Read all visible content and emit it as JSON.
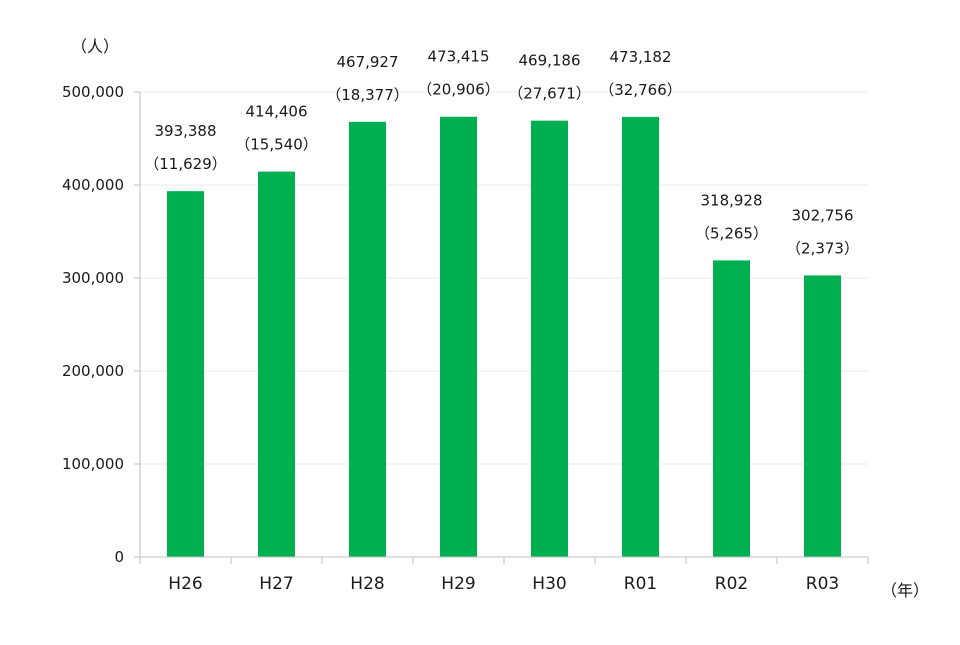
{
  "chart_data": {
    "type": "bar",
    "y_unit_label": "（人）",
    "x_unit_label": "（年）",
    "categories": [
      "H26",
      "H27",
      "H28",
      "H29",
      "H30",
      "R01",
      "R02",
      "R03"
    ],
    "values": [
      393388,
      414406,
      467927,
      473415,
      469186,
      473182,
      318928,
      302756
    ],
    "value_labels": [
      "393,388",
      "414,406",
      "467,927",
      "473,415",
      "469,186",
      "473,182",
      "318,928",
      "302,756"
    ],
    "sub_labels": [
      "（11,629）",
      "（15,540）",
      "（18,377）",
      "（20,906）",
      "（27,671）",
      "（32,766）",
      "（5,265）",
      "（2,373）"
    ],
    "y_ticks": [
      0,
      100000,
      200000,
      300000,
      400000,
      500000
    ],
    "y_tick_labels": [
      "0",
      "100,000",
      "200,000",
      "300,000",
      "400,000",
      "500,000"
    ],
    "ylim": [
      0,
      500000
    ],
    "grid": true,
    "colors": {
      "bar": "#00b050",
      "grid": "#e8e8e8",
      "axis": "#bfbfbf"
    }
  }
}
